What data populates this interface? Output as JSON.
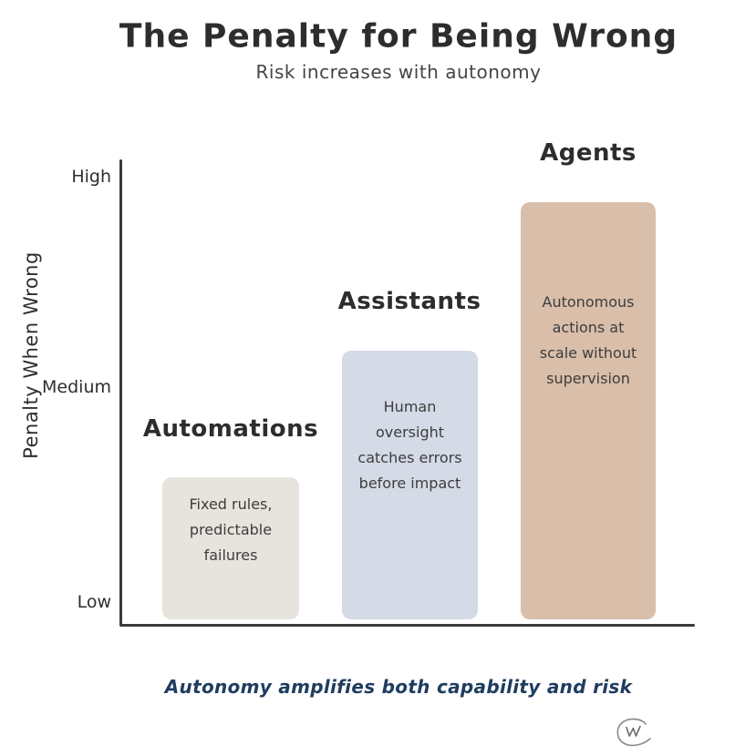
{
  "header": {
    "title": "The Penalty for Being Wrong",
    "subtitle": "Risk increases with autonomy"
  },
  "chart_data": {
    "type": "bar",
    "title": "The Penalty for Being Wrong",
    "subtitle": "Risk increases with autonomy",
    "xlabel": "",
    "ylabel": "Penalty When Wrong",
    "yticks": [
      "High",
      "Medium",
      "Low"
    ],
    "ylim": [
      0,
      100
    ],
    "grid": false,
    "categories": [
      "Automations",
      "Assistants",
      "Agents"
    ],
    "bars": [
      {
        "label": "Automations",
        "description": "Fixed rules,\npredictable\nfailures",
        "value_pct": 30.5,
        "value_scale_low1_high3": 1.55,
        "color": "#e6e4dd"
      },
      {
        "label": "Assistants",
        "description": "Human oversight\ncatches errors\nbefore impact",
        "value_pct": 57.6,
        "value_scale_low1_high3": 2.15,
        "color": "#d4dae6"
      },
      {
        "label": "Agents",
        "description": "Autonomous\nactions at\nscale without\nsupervision",
        "value_pct": 89.5,
        "value_scale_low1_high3": 2.85,
        "color": "#d9bea9"
      }
    ],
    "caption": "Autonomy amplifies both capability and risk",
    "colors": {
      "axis": "#3a3a3a",
      "caption_text": "#1f3d60",
      "heading_text": "#2d2d2d",
      "signature": "#8a8a8a"
    }
  },
  "footer": {
    "caption": "Autonomy amplifies both capability and risk",
    "signature": "circled-w-monogram"
  }
}
